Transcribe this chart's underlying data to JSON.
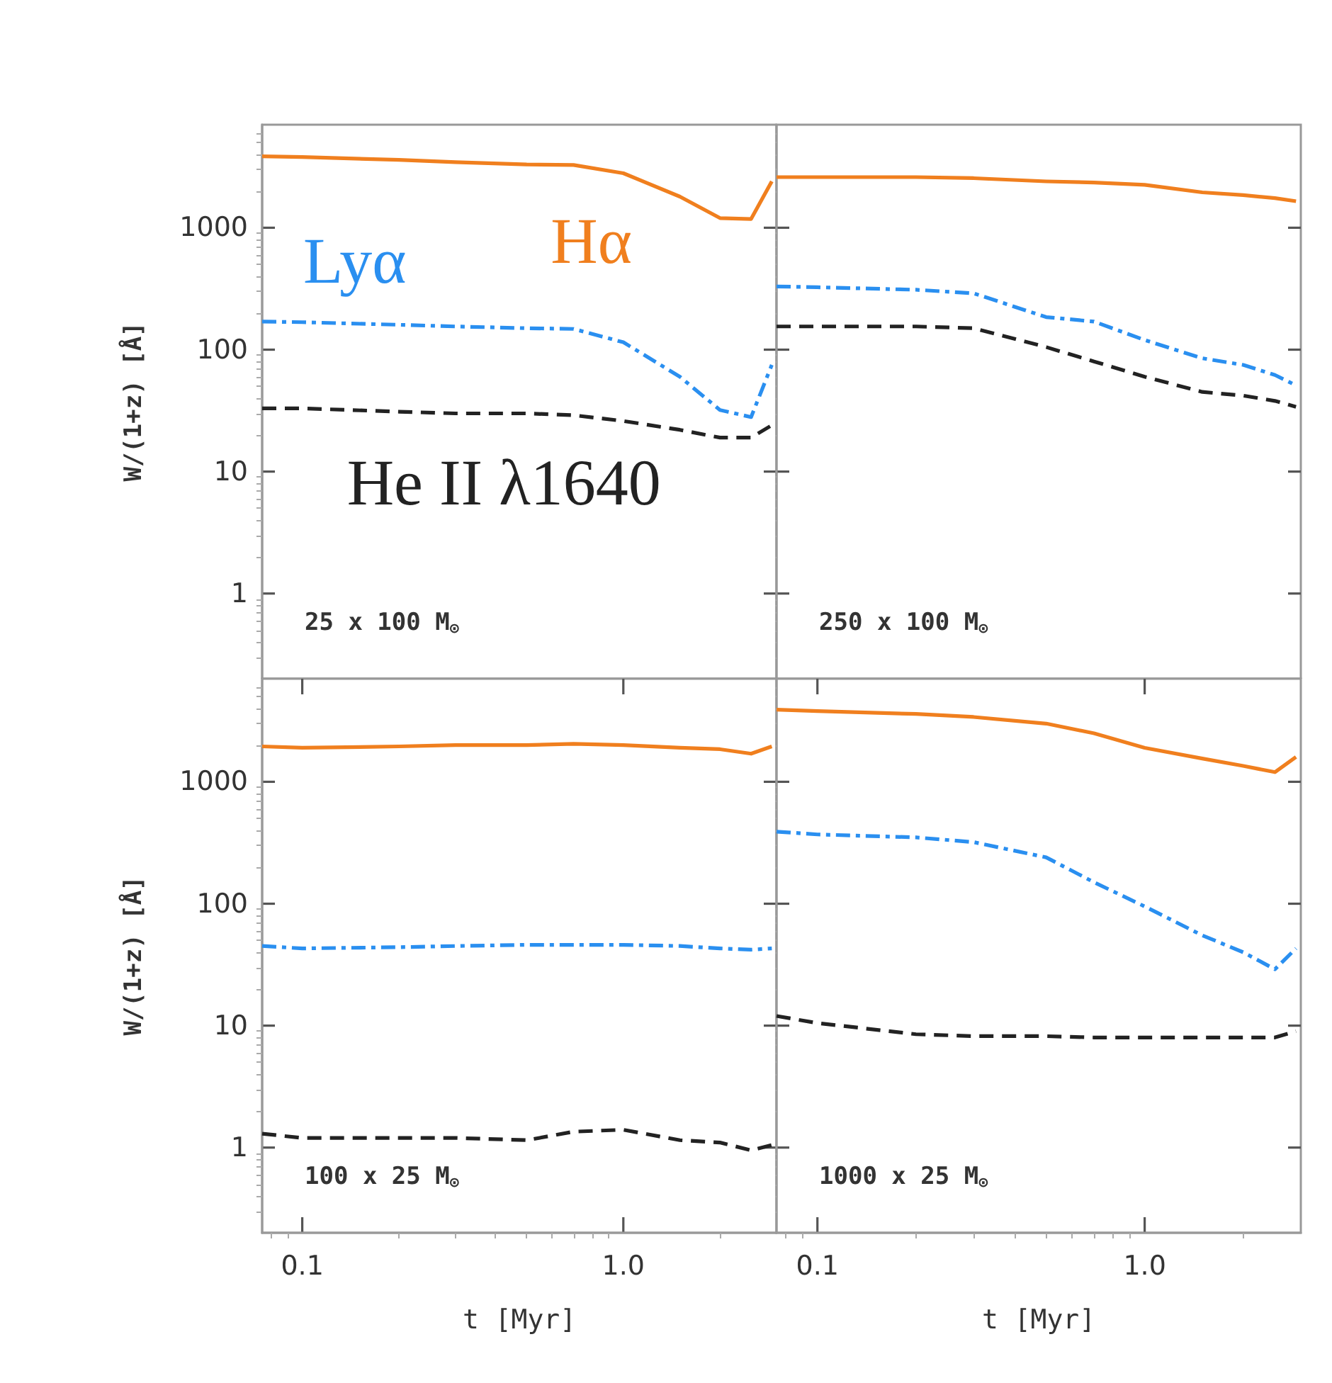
{
  "chart_data": [
    {
      "type": "line",
      "log": "xy",
      "xlim": [
        0.075,
        3
      ],
      "ylim": [
        0.2,
        7000
      ],
      "yticks": [
        1,
        10,
        100,
        1000
      ],
      "tick_labels": "y",
      "ylabel": "W/(1+z) [Å]",
      "x": [
        0.075,
        0.1,
        0.2,
        0.3,
        0.5,
        0.7,
        1.0,
        1.5,
        2.0,
        2.5,
        2.9
      ],
      "series": [
        {
          "color": "#f07f1e",
          "line_style": "solid",
          "values": [
            3850,
            3800,
            3600,
            3450,
            3300,
            3270,
            2800,
            1800,
            1200,
            1180,
            2400
          ]
        },
        {
          "color": "#2a8ff0",
          "line_style": "dashdot",
          "values": [
            170,
            168,
            160,
            155,
            150,
            148,
            115,
            60,
            32,
            28,
            75
          ]
        },
        {
          "color": "#222222",
          "line_style": "dashed",
          "values": [
            33,
            33,
            31,
            30,
            30,
            29,
            26,
            22,
            19,
            19,
            24
          ]
        }
      ],
      "annotations": [
        "25 x 100 M$_{⊙}$",
        "Hα",
        "Lyα",
        "He II λ1640"
      ]
    },
    {
      "type": "line",
      "log": "xy",
      "xlim": [
        0.075,
        3
      ],
      "ylim": [
        0.2,
        7000
      ],
      "yticks": [
        1,
        10,
        100,
        1000
      ],
      "tick_labels": false,
      "x": [
        0.075,
        0.1,
        0.2,
        0.3,
        0.5,
        0.7,
        1.0,
        1.5,
        2.0,
        2.5,
        2.9
      ],
      "series": [
        {
          "color": "#f07f1e",
          "line_style": "solid",
          "values": [
            2600,
            2600,
            2600,
            2550,
            2400,
            2350,
            2250,
            1950,
            1850,
            1750,
            1650
          ]
        },
        {
          "color": "#2a8ff0",
          "line_style": "dashdot",
          "values": [
            330,
            325,
            310,
            290,
            185,
            170,
            120,
            85,
            75,
            62,
            51
          ]
        },
        {
          "color": "#222222",
          "line_style": "dashed",
          "values": [
            155,
            155,
            155,
            150,
            105,
            80,
            60,
            45,
            42,
            38,
            34
          ]
        }
      ],
      "annotations": [
        "250 x 100 M$_{⊙}$"
      ]
    },
    {
      "type": "line",
      "log": "xy",
      "xlim": [
        0.075,
        3
      ],
      "ylim": [
        0.2,
        7000
      ],
      "xticks": [
        0.1,
        {
          "value": 1,
          "label": "1.0"
        }
      ],
      "yticks": [
        1,
        10,
        100,
        1000
      ],
      "xlabel": "t [Myr]",
      "ylabel": "W/(1+z) [Å]",
      "x": [
        0.075,
        0.1,
        0.2,
        0.3,
        0.5,
        0.7,
        1.0,
        1.5,
        2.0,
        2.5,
        2.9
      ],
      "series": [
        {
          "color": "#f07f1e",
          "line_style": "solid",
          "values": [
            1950,
            1900,
            1950,
            2000,
            2000,
            2050,
            2000,
            1900,
            1850,
            1700,
            1950
          ]
        },
        {
          "color": "#2a8ff0",
          "line_style": "dashdot",
          "values": [
            45,
            43,
            44,
            45,
            46,
            46,
            46,
            45,
            43,
            42,
            43
          ]
        },
        {
          "color": "#222222",
          "line_style": "dashed",
          "values": [
            1.3,
            1.2,
            1.2,
            1.2,
            1.15,
            1.35,
            1.4,
            1.15,
            1.1,
            0.95,
            1.05
          ]
        }
      ],
      "annotations": [
        "100 x 25 M$_{⊙}$"
      ]
    },
    {
      "type": "line",
      "log": "xy",
      "xlim": [
        0.075,
        3
      ],
      "ylim": [
        0.2,
        7000
      ],
      "xticks": [
        0.1,
        {
          "value": 1,
          "label": "1.0"
        }
      ],
      "yticks": [
        1,
        10,
        100,
        1000
      ],
      "tick_labels": "x",
      "xlabel": "t [Myr]",
      "x": [
        0.075,
        0.1,
        0.2,
        0.3,
        0.5,
        0.7,
        1.0,
        1.5,
        2.0,
        2.5,
        2.9
      ],
      "series": [
        {
          "color": "#f07f1e",
          "line_style": "solid",
          "values": [
            3900,
            3800,
            3600,
            3400,
            3000,
            2500,
            1900,
            1550,
            1350,
            1200,
            1600
          ]
        },
        {
          "color": "#2a8ff0",
          "line_style": "dashdot",
          "values": [
            390,
            370,
            350,
            320,
            240,
            150,
            95,
            55,
            40,
            29,
            43
          ]
        },
        {
          "color": "#222222",
          "line_style": "dashed",
          "values": [
            12,
            10.5,
            8.5,
            8.2,
            8.2,
            8,
            8,
            8,
            8,
            8,
            9
          ]
        }
      ],
      "annotations": [
        "1000 x 25 M$_{⊙}$"
      ]
    }
  ]
}
